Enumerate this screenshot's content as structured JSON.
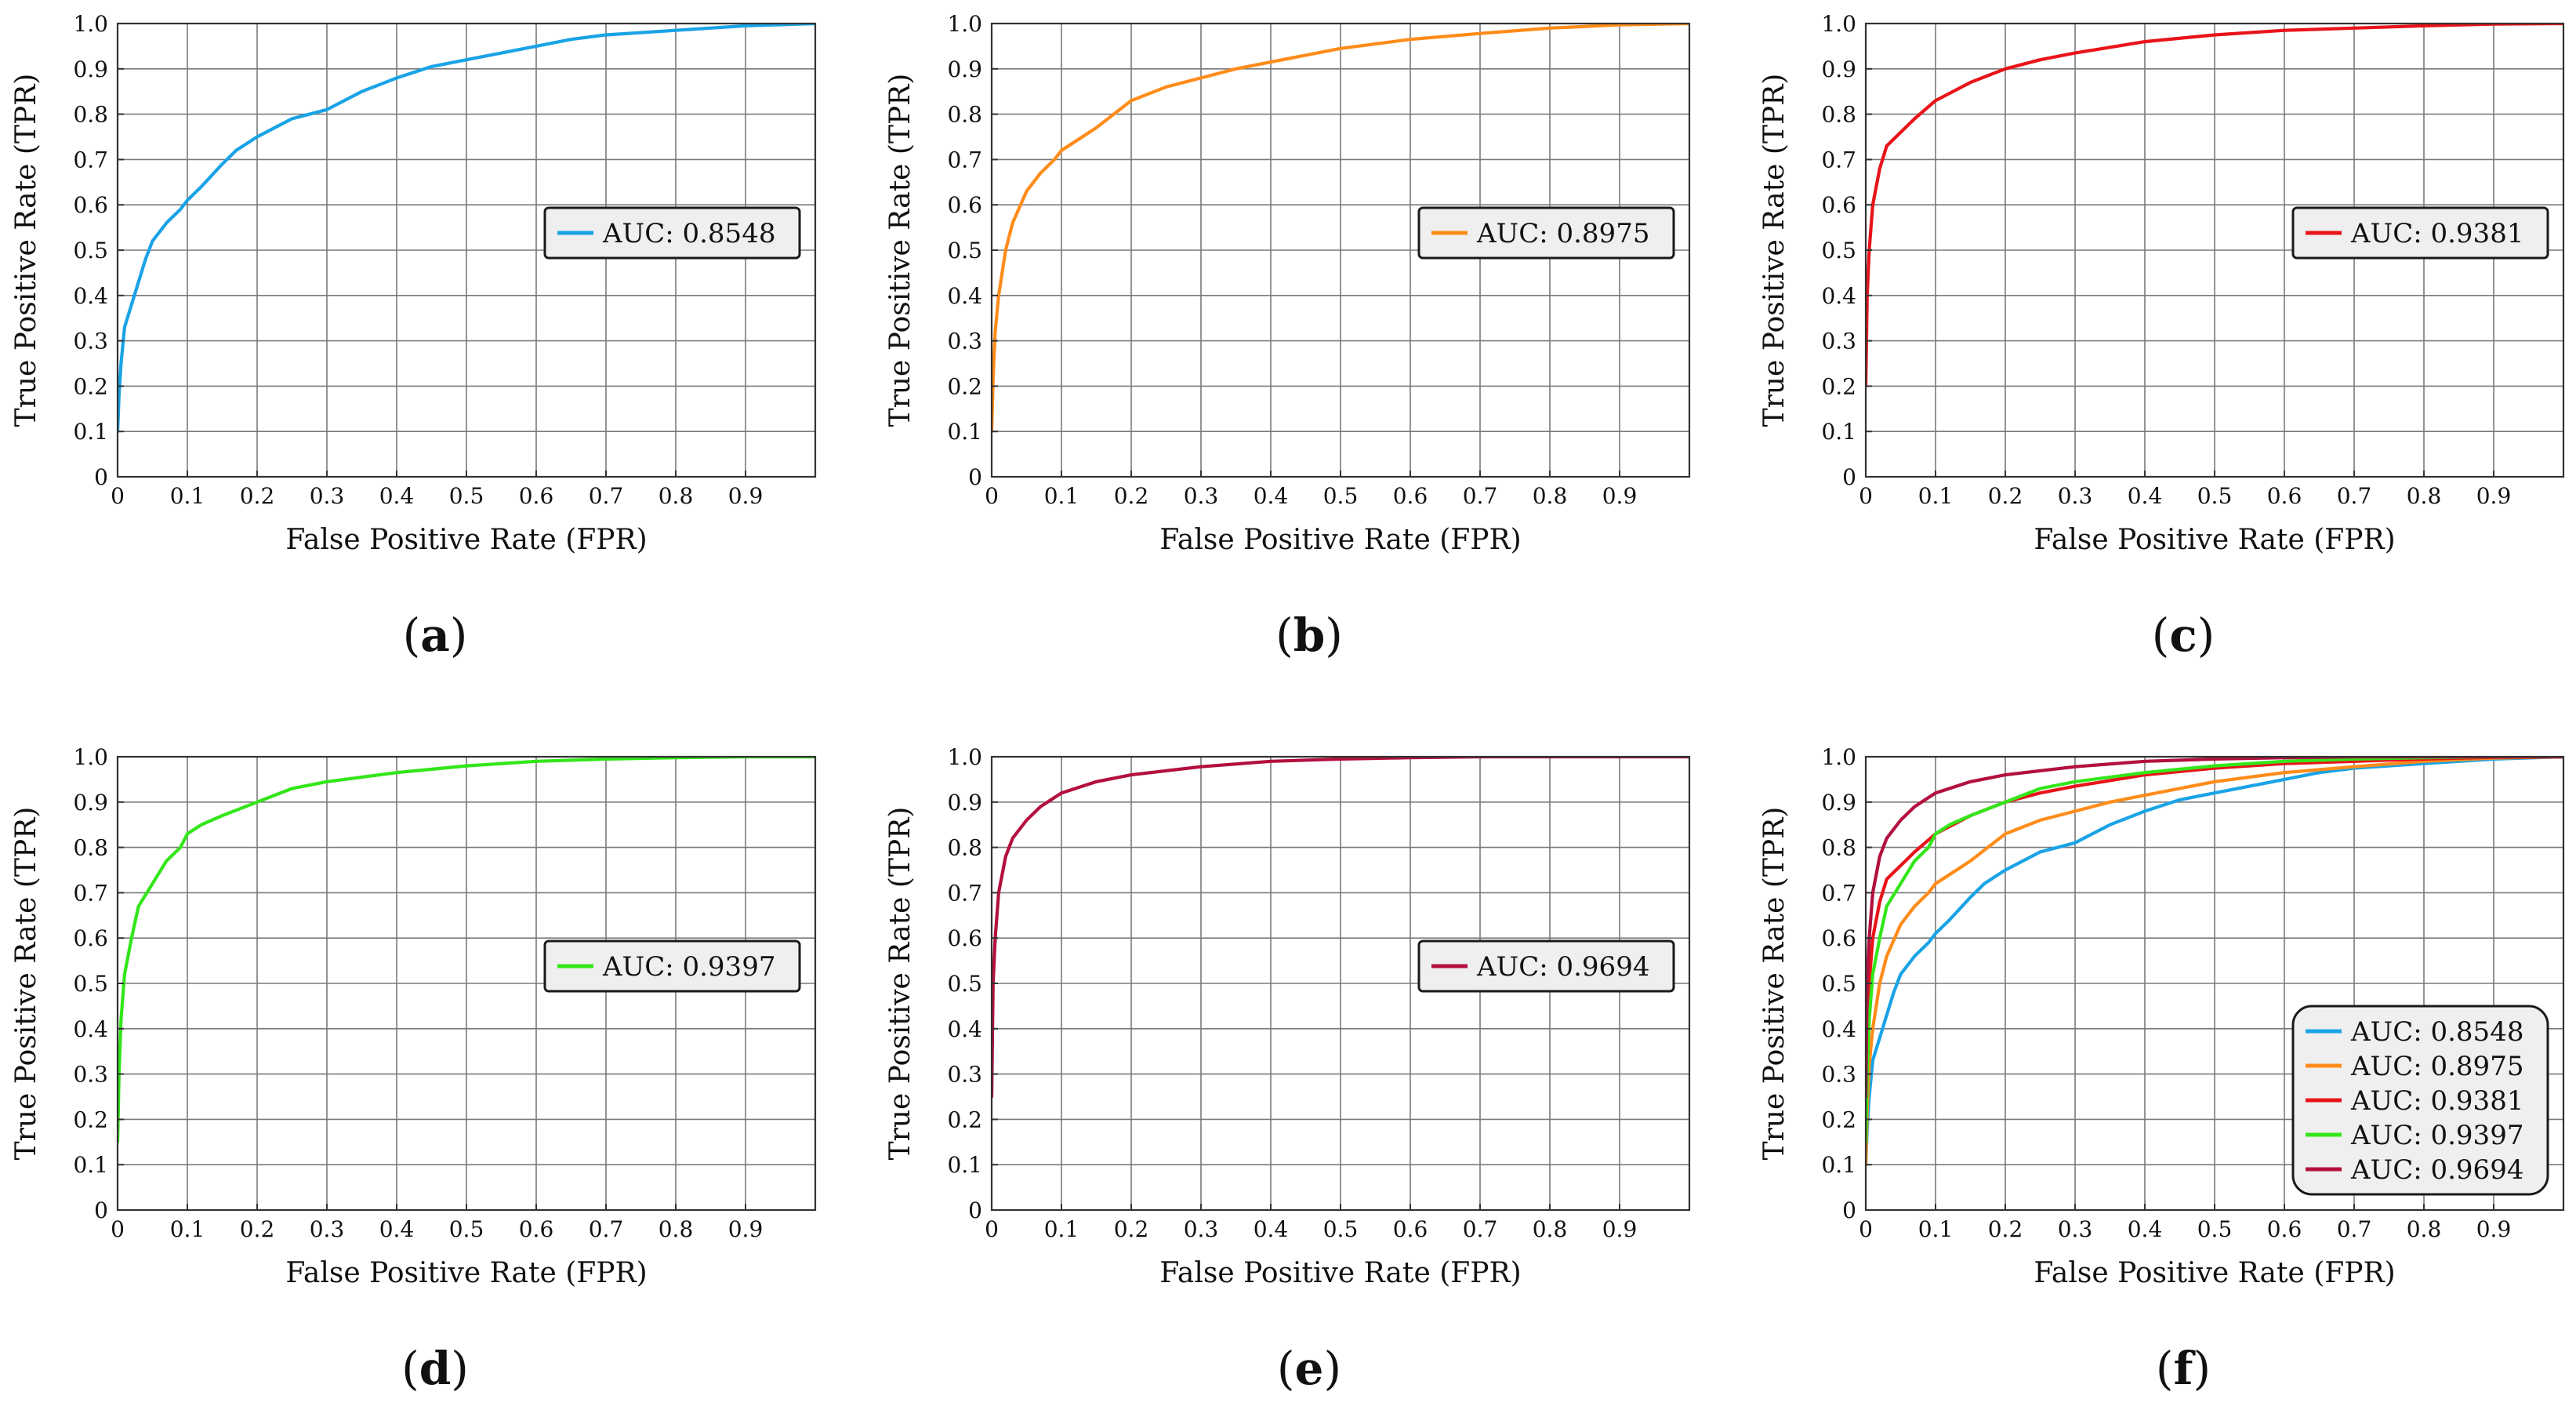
{
  "figure": {
    "xlabel": "False Positive Rate (FPR)",
    "ylabel": "True Positive Rate (TPR)",
    "x_ticks": [
      "0",
      "0.1",
      "0.2",
      "0.3",
      "0.4",
      "0.5",
      "0.6",
      "0.7",
      "0.8",
      "0.9"
    ],
    "y_ticks": [
      "0",
      "0.1",
      "0.2",
      "0.3",
      "0.4",
      "0.5",
      "0.6",
      "0.7",
      "0.8",
      "0.9",
      "1.0"
    ]
  },
  "chart_data": [
    {
      "type": "line",
      "panel": "a",
      "xlabel": "False Positive Rate (FPR)",
      "ylabel": "True Positive Rate (TPR)",
      "xlim": [
        0,
        1
      ],
      "ylim": [
        0,
        1
      ],
      "grid": true,
      "legend_position": "center-right",
      "series": [
        {
          "name": "AUC: 0.8548",
          "color": "#1aa3e6",
          "x": [
            0,
            0.002,
            0.005,
            0.01,
            0.02,
            0.03,
            0.04,
            0.05,
            0.07,
            0.09,
            0.1,
            0.12,
            0.15,
            0.17,
            0.2,
            0.25,
            0.3,
            0.35,
            0.4,
            0.45,
            0.5,
            0.55,
            0.6,
            0.65,
            0.7,
            0.8,
            0.9,
            1.0
          ],
          "y": [
            0.1,
            0.18,
            0.25,
            0.33,
            0.38,
            0.43,
            0.48,
            0.52,
            0.56,
            0.59,
            0.61,
            0.64,
            0.69,
            0.72,
            0.75,
            0.79,
            0.81,
            0.85,
            0.88,
            0.905,
            0.92,
            0.935,
            0.95,
            0.965,
            0.975,
            0.985,
            0.995,
            1.0
          ]
        }
      ]
    },
    {
      "type": "line",
      "panel": "b",
      "xlabel": "False Positive Rate (FPR)",
      "ylabel": "True Positive Rate (TPR)",
      "xlim": [
        0,
        1
      ],
      "ylim": [
        0,
        1
      ],
      "grid": true,
      "legend_position": "center-right",
      "series": [
        {
          "name": "AUC: 0.8975",
          "color": "#ff8c1a",
          "x": [
            0,
            0.002,
            0.005,
            0.01,
            0.02,
            0.03,
            0.05,
            0.07,
            0.09,
            0.1,
            0.12,
            0.15,
            0.2,
            0.25,
            0.3,
            0.35,
            0.4,
            0.5,
            0.6,
            0.7,
            0.8,
            0.9,
            1.0
          ],
          "y": [
            0.1,
            0.22,
            0.32,
            0.4,
            0.5,
            0.56,
            0.63,
            0.67,
            0.7,
            0.72,
            0.74,
            0.77,
            0.83,
            0.86,
            0.88,
            0.9,
            0.915,
            0.945,
            0.965,
            0.978,
            0.99,
            0.997,
            1.0
          ]
        }
      ]
    },
    {
      "type": "line",
      "panel": "c",
      "xlabel": "False Positive Rate (FPR)",
      "ylabel": "True Positive Rate (TPR)",
      "xlim": [
        0,
        1
      ],
      "ylim": [
        0,
        1
      ],
      "grid": true,
      "legend_position": "center-right",
      "series": [
        {
          "name": "AUC: 0.9381",
          "color": "#e8141a",
          "x": [
            0,
            0.002,
            0.005,
            0.01,
            0.02,
            0.03,
            0.05,
            0.07,
            0.1,
            0.15,
            0.2,
            0.25,
            0.3,
            0.4,
            0.5,
            0.6,
            0.7,
            0.8,
            0.9,
            1.0
          ],
          "y": [
            0.2,
            0.4,
            0.5,
            0.6,
            0.68,
            0.73,
            0.76,
            0.79,
            0.83,
            0.87,
            0.9,
            0.92,
            0.935,
            0.96,
            0.975,
            0.985,
            0.99,
            0.995,
            0.999,
            1.0
          ]
        }
      ]
    },
    {
      "type": "line",
      "panel": "d",
      "xlabel": "False Positive Rate (FPR)",
      "ylabel": "True Positive Rate (TPR)",
      "xlim": [
        0,
        1
      ],
      "ylim": [
        0,
        1
      ],
      "grid": true,
      "legend_position": "center-right",
      "series": [
        {
          "name": "AUC: 0.9397",
          "color": "#33e61a",
          "x": [
            0,
            0.002,
            0.005,
            0.01,
            0.02,
            0.03,
            0.05,
            0.07,
            0.09,
            0.1,
            0.12,
            0.15,
            0.2,
            0.25,
            0.3,
            0.4,
            0.5,
            0.6,
            0.7,
            0.8,
            0.9,
            1.0
          ],
          "y": [
            0.15,
            0.3,
            0.42,
            0.52,
            0.6,
            0.67,
            0.72,
            0.77,
            0.8,
            0.83,
            0.85,
            0.87,
            0.9,
            0.93,
            0.945,
            0.965,
            0.98,
            0.99,
            0.995,
            0.998,
            1.0,
            1.0
          ]
        }
      ]
    },
    {
      "type": "line",
      "panel": "e",
      "xlabel": "False Positive Rate (FPR)",
      "ylabel": "True Positive Rate (TPR)",
      "xlim": [
        0,
        1
      ],
      "ylim": [
        0,
        1
      ],
      "grid": true,
      "legend_position": "center-right",
      "series": [
        {
          "name": "AUC: 0.9694",
          "color": "#b3103f",
          "x": [
            0,
            0.002,
            0.005,
            0.01,
            0.02,
            0.03,
            0.05,
            0.07,
            0.1,
            0.15,
            0.2,
            0.3,
            0.4,
            0.5,
            0.6,
            0.7,
            0.8,
            0.9,
            1.0
          ],
          "y": [
            0.25,
            0.5,
            0.6,
            0.7,
            0.78,
            0.82,
            0.86,
            0.89,
            0.92,
            0.945,
            0.96,
            0.978,
            0.99,
            0.995,
            0.998,
            1.0,
            1.0,
            1.0,
            1.0
          ]
        }
      ]
    },
    {
      "type": "line",
      "panel": "f",
      "xlabel": "False Positive Rate (FPR)",
      "ylabel": "True Positive Rate (TPR)",
      "xlim": [
        0,
        1
      ],
      "ylim": [
        0,
        1
      ],
      "grid": true,
      "legend_position": "bottom-right",
      "series": [
        {
          "name": "AUC: 0.8548",
          "color": "#1aa3e6",
          "x": [
            0,
            0.002,
            0.005,
            0.01,
            0.02,
            0.03,
            0.04,
            0.05,
            0.07,
            0.09,
            0.1,
            0.12,
            0.15,
            0.17,
            0.2,
            0.25,
            0.3,
            0.35,
            0.4,
            0.45,
            0.5,
            0.55,
            0.6,
            0.65,
            0.7,
            0.8,
            0.9,
            1.0
          ],
          "y": [
            0.1,
            0.18,
            0.25,
            0.33,
            0.38,
            0.43,
            0.48,
            0.52,
            0.56,
            0.59,
            0.61,
            0.64,
            0.69,
            0.72,
            0.75,
            0.79,
            0.81,
            0.85,
            0.88,
            0.905,
            0.92,
            0.935,
            0.95,
            0.965,
            0.975,
            0.985,
            0.995,
            1.0
          ]
        },
        {
          "name": "AUC: 0.8975",
          "color": "#ff8c1a",
          "x": [
            0,
            0.002,
            0.005,
            0.01,
            0.02,
            0.03,
            0.05,
            0.07,
            0.09,
            0.1,
            0.12,
            0.15,
            0.2,
            0.25,
            0.3,
            0.35,
            0.4,
            0.5,
            0.6,
            0.7,
            0.8,
            0.9,
            1.0
          ],
          "y": [
            0.1,
            0.22,
            0.32,
            0.4,
            0.5,
            0.56,
            0.63,
            0.67,
            0.7,
            0.72,
            0.74,
            0.77,
            0.83,
            0.86,
            0.88,
            0.9,
            0.915,
            0.945,
            0.965,
            0.978,
            0.99,
            0.997,
            1.0
          ]
        },
        {
          "name": "AUC: 0.9381",
          "color": "#e8141a",
          "x": [
            0,
            0.002,
            0.005,
            0.01,
            0.02,
            0.03,
            0.05,
            0.07,
            0.1,
            0.15,
            0.2,
            0.25,
            0.3,
            0.4,
            0.5,
            0.6,
            0.7,
            0.8,
            0.9,
            1.0
          ],
          "y": [
            0.2,
            0.4,
            0.5,
            0.6,
            0.68,
            0.73,
            0.76,
            0.79,
            0.83,
            0.87,
            0.9,
            0.92,
            0.935,
            0.96,
            0.975,
            0.985,
            0.99,
            0.995,
            0.999,
            1.0
          ]
        },
        {
          "name": "AUC: 0.9397",
          "color": "#33e61a",
          "x": [
            0,
            0.002,
            0.005,
            0.01,
            0.02,
            0.03,
            0.05,
            0.07,
            0.09,
            0.1,
            0.12,
            0.15,
            0.2,
            0.25,
            0.3,
            0.4,
            0.5,
            0.6,
            0.7,
            0.8,
            0.9,
            1.0
          ],
          "y": [
            0.15,
            0.3,
            0.42,
            0.52,
            0.6,
            0.67,
            0.72,
            0.77,
            0.8,
            0.83,
            0.85,
            0.87,
            0.9,
            0.93,
            0.945,
            0.965,
            0.98,
            0.99,
            0.995,
            0.998,
            1.0,
            1.0
          ]
        },
        {
          "name": "AUC: 0.9694",
          "color": "#b3103f",
          "x": [
            0,
            0.002,
            0.005,
            0.01,
            0.02,
            0.03,
            0.05,
            0.07,
            0.1,
            0.15,
            0.2,
            0.3,
            0.4,
            0.5,
            0.6,
            0.7,
            0.8,
            0.9,
            1.0
          ],
          "y": [
            0.25,
            0.5,
            0.6,
            0.7,
            0.78,
            0.82,
            0.86,
            0.89,
            0.92,
            0.945,
            0.96,
            0.978,
            0.99,
            0.995,
            0.998,
            1.0,
            1.0,
            1.0,
            1.0
          ]
        }
      ]
    }
  ]
}
